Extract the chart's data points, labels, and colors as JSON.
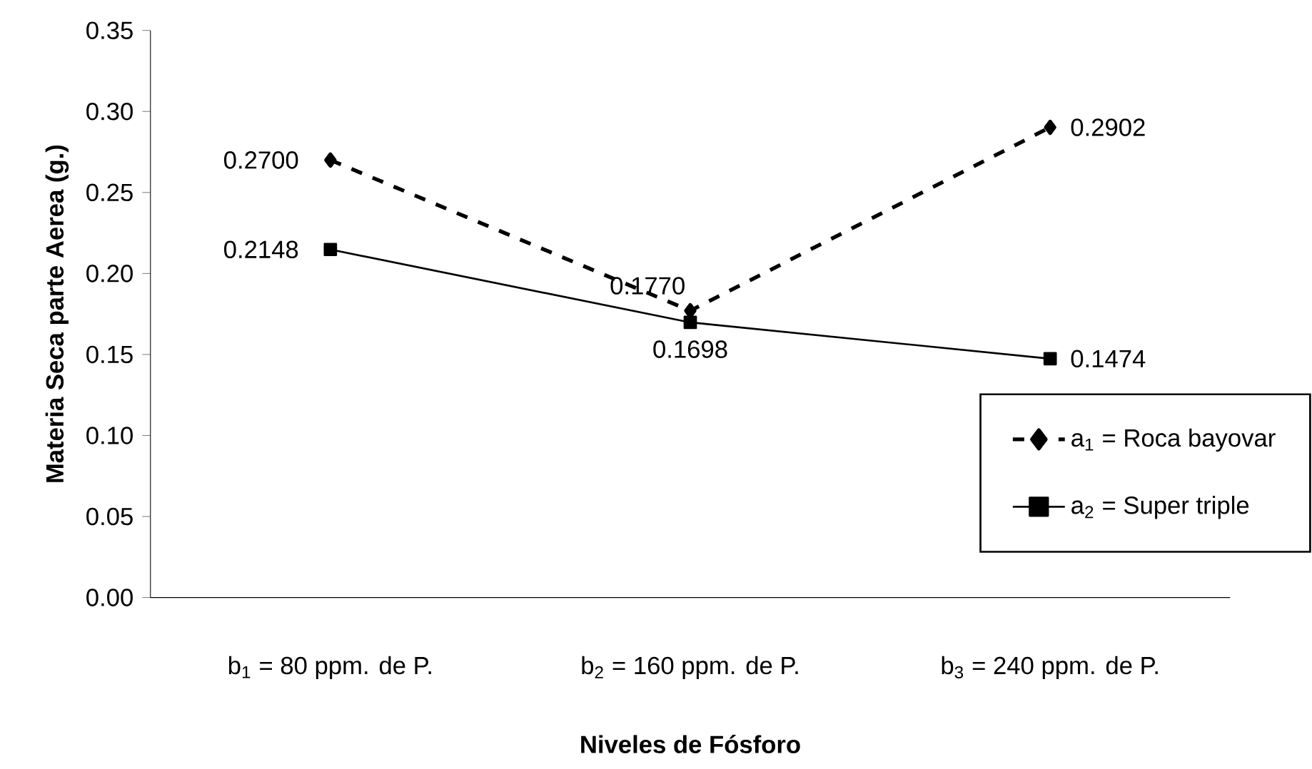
{
  "chart_data": {
    "type": "line",
    "xlabel": "Niveles de Fósforo",
    "ylabel": "Materia Seca parte Aerea (g.)",
    "categories": [
      "b$_{1}$ = 80 ppm. de P.",
      "b$_{2}$ = 160 ppm. de P.",
      "b$_{3}$ = 240 ppm. de P."
    ],
    "series": [
      {
        "name": "a$_{1}$ = Roca bayovar",
        "color": "#000000",
        "values": [
          0.27,
          0.177,
          0.2902
        ],
        "value_labels": [
          "0.2700",
          "0.1770",
          "0.2902"
        ],
        "line_style": "dashed",
        "marker": "diamond"
      },
      {
        "name": "a$_{2}$ = Super triple",
        "color": "#000000",
        "values": [
          0.2148,
          0.1698,
          0.1474
        ],
        "value_labels": [
          "0.2148",
          "0.1698",
          "0.1474"
        ],
        "line_style": "solid",
        "marker": "square"
      }
    ],
    "ylim": [
      0,
      0.35
    ],
    "yticks": [
      {
        "value": 0,
        "label": "0.00"
      },
      {
        "value": 0.05,
        "label": "0.05"
      },
      {
        "value": 0.1,
        "label": "0.10"
      },
      {
        "value": 0.15,
        "label": "0.15"
      },
      {
        "value": 0.2,
        "label": "0.20"
      },
      {
        "value": 0.25,
        "label": "0.25"
      },
      {
        "value": 0.3,
        "label": "0.30"
      },
      {
        "value": 0.35,
        "label": "0.35"
      }
    ],
    "grid": false,
    "legend": "bottom right"
  }
}
